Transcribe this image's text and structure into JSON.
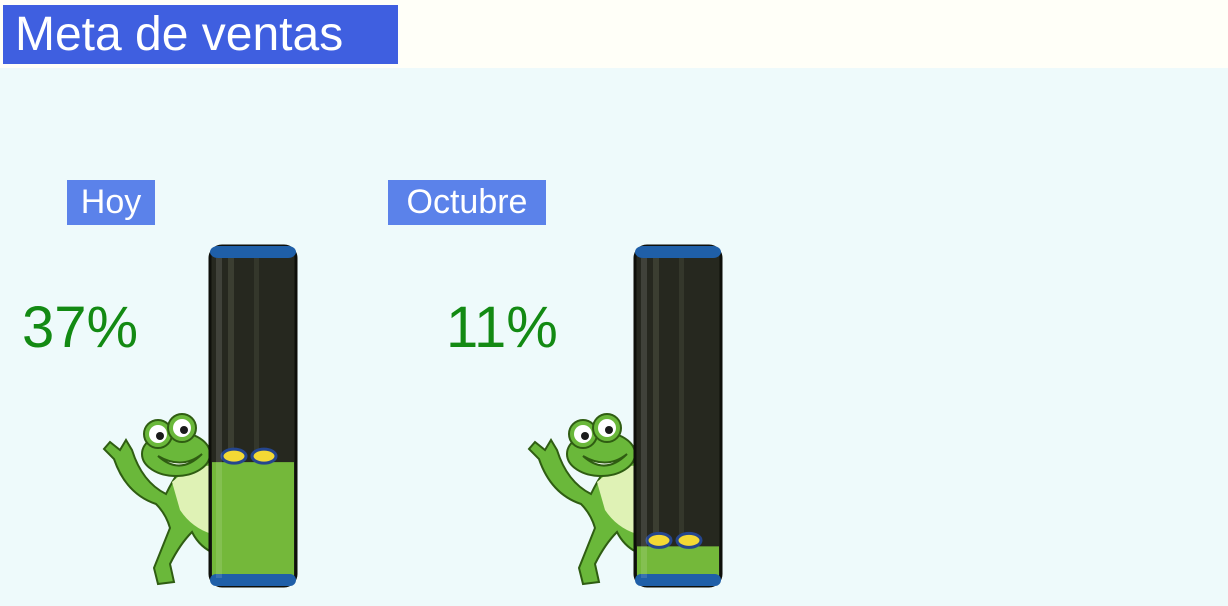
{
  "header": {
    "title": "Meta de ventas"
  },
  "gauges": [
    {
      "label": "Hoy",
      "value_text": "37%",
      "fill_fraction": 0.37
    },
    {
      "label": "Octubre",
      "value_text": "11%",
      "fill_fraction": 0.11
    }
  ],
  "colors": {
    "title_bg": "#3f5fe0",
    "label_bg": "#5b82ea",
    "value_text": "#138a13",
    "panel_bg": "#eefafb",
    "tube_dark": "#26281f",
    "tube_cap": "#1f5fa8",
    "liquid": "#74b83a",
    "coin_yellow": "#f3d935",
    "coin_blue": "#25468e",
    "frog": "#6ab83a"
  }
}
